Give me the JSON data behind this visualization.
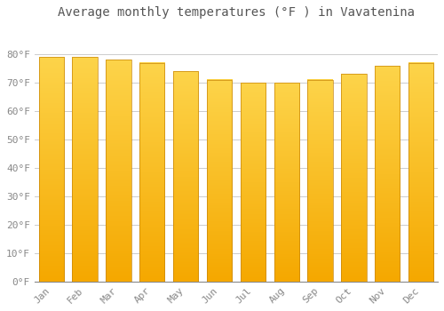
{
  "title": "Average monthly temperatures (°F ) in Vavatenina",
  "months": [
    "Jan",
    "Feb",
    "Mar",
    "Apr",
    "May",
    "Jun",
    "Jul",
    "Aug",
    "Sep",
    "Oct",
    "Nov",
    "Dec"
  ],
  "values": [
    79,
    79,
    78,
    77,
    74,
    71,
    70,
    70,
    71,
    73,
    76,
    77
  ],
  "bar_color_top": "#FDD44A",
  "bar_color_bottom": "#F5A800",
  "bar_edge_color": "#C8860A",
  "background_color": "#FFFFFF",
  "plot_bg_color": "#FFFFFF",
  "grid_color": "#CCCCCC",
  "ylim": [
    0,
    90
  ],
  "yticks": [
    0,
    10,
    20,
    30,
    40,
    50,
    60,
    70,
    80
  ],
  "ytick_labels": [
    "0°F",
    "10°F",
    "20°F",
    "30°F",
    "40°F",
    "50°F",
    "60°F",
    "70°F",
    "80°F"
  ],
  "title_fontsize": 10,
  "tick_fontsize": 8,
  "bar_width": 0.75
}
